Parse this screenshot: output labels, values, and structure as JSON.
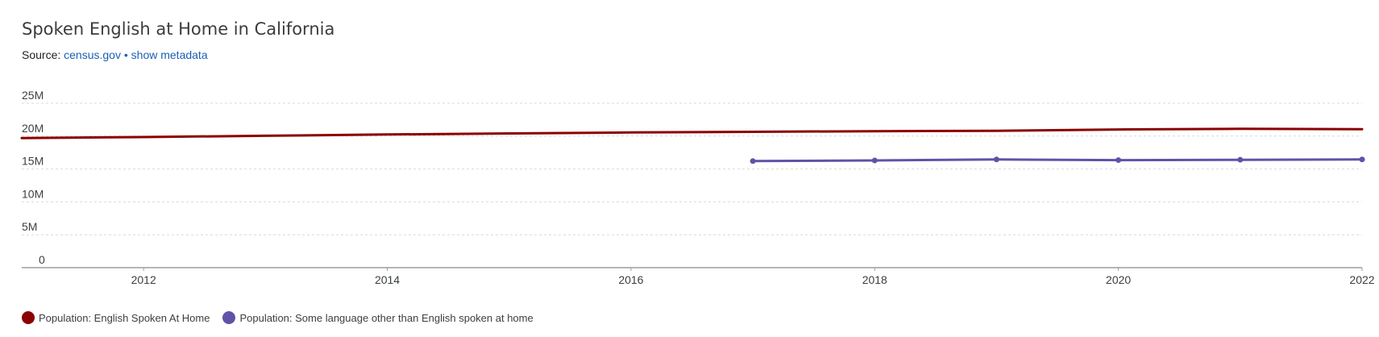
{
  "header": {
    "title": "Spoken English at Home in California",
    "source_prefix": "Source:",
    "source_link": "census.gov",
    "separator": "•",
    "metadata_link": "show metadata"
  },
  "chart_data": {
    "type": "line",
    "title": "Spoken English at Home in California",
    "xlabel": "",
    "ylabel": "",
    "xlim": [
      2011,
      2022
    ],
    "ylim": [
      0,
      25000000
    ],
    "x_ticks": [
      2012,
      2014,
      2016,
      2018,
      2020,
      2022
    ],
    "y_ticks": [
      {
        "value": 0,
        "label": "0"
      },
      {
        "value": 5000000,
        "label": "5M"
      },
      {
        "value": 10000000,
        "label": "10M"
      },
      {
        "value": 15000000,
        "label": "15M"
      },
      {
        "value": 20000000,
        "label": "20M"
      },
      {
        "value": 25000000,
        "label": "25M"
      }
    ],
    "grid": true,
    "legend_position": "bottom-left",
    "series": [
      {
        "name": "Population: English Spoken At Home",
        "color": "#8b0000",
        "markers": false,
        "x": [
          2011,
          2012,
          2013,
          2014,
          2015,
          2016,
          2017,
          2018,
          2019,
          2020,
          2021,
          2022
        ],
        "values": [
          19700000,
          19850000,
          20050000,
          20250000,
          20400000,
          20550000,
          20650000,
          20750000,
          20800000,
          21000000,
          21100000,
          21050000
        ]
      },
      {
        "name": "Population: Some language other than English spoken at home",
        "color": "#6152a8",
        "markers": true,
        "x": [
          2017,
          2018,
          2019,
          2020,
          2021,
          2022
        ],
        "values": [
          16200000,
          16300000,
          16450000,
          16350000,
          16400000,
          16450000
        ]
      }
    ]
  }
}
